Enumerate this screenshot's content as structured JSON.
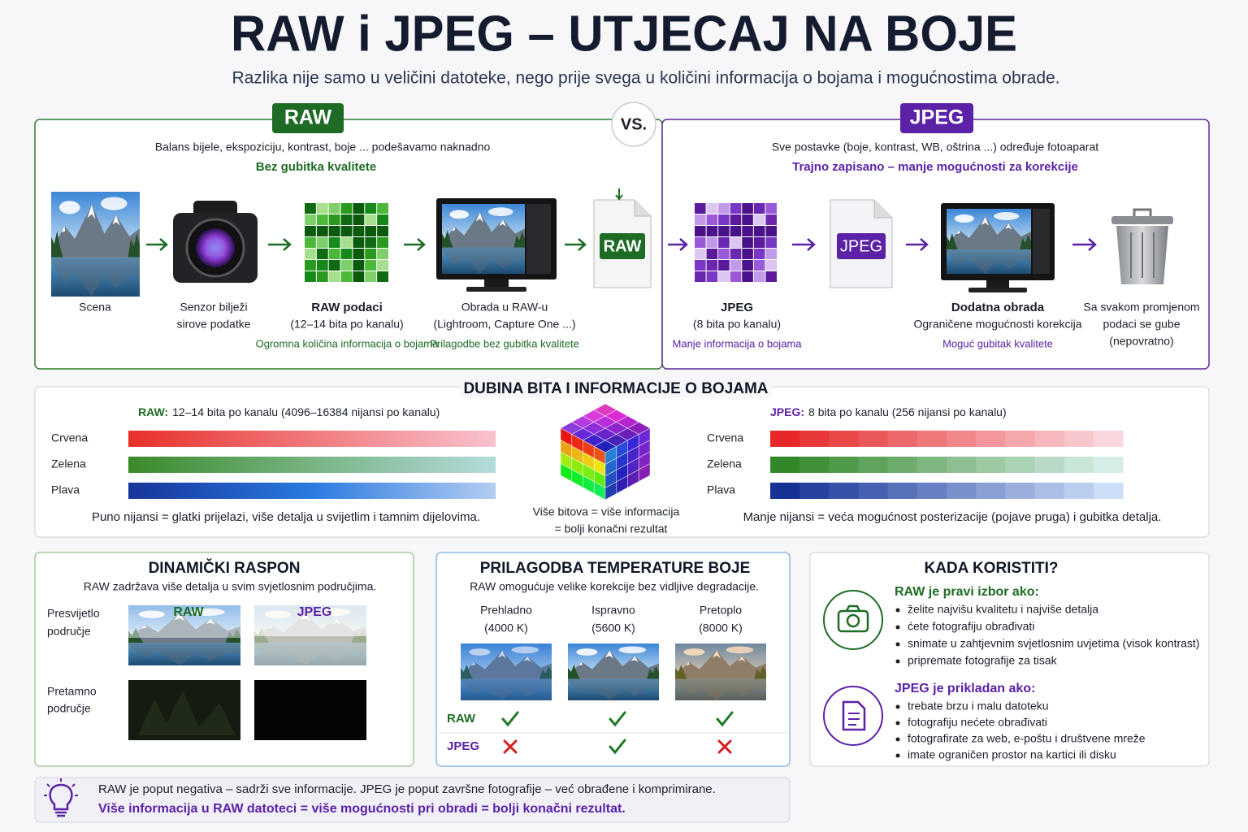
{
  "header": {
    "title": "RAW i JPEG – UTJECAJ NA BOJE",
    "subtitle": "Razlika nije samo u veličini datoteke, nego prije svega u količini informacija o bojama i mogućnostima obrade."
  },
  "raw_panel": {
    "badge": "RAW",
    "intro": "Balans bijele, ekspoziciju, kontrast, boje ... podešavamo naknadno",
    "highlight": "Bez gubitka kvalitete",
    "file_label": "RAW",
    "steps": [
      {
        "lines": [
          "Scena"
        ]
      },
      {
        "lines": [
          "Senzor bilježi",
          "sirove podatke"
        ]
      },
      {
        "lines": [
          "RAW podaci",
          "(12–14 bita po kanalu)"
        ],
        "note": "Ogromna količina informacija o bojama"
      },
      {
        "lines": [
          "Obrada u RAW-u",
          "(Lightroom, Capture One ...)"
        ],
        "note": "Prilagodbe bez gubitka kvalitete"
      }
    ]
  },
  "vs": "VS.",
  "jpeg_panel": {
    "badge": "JPEG",
    "intro": "Sve postavke (boje, kontrast, WB, oštrina ...) određuje fotoaparat",
    "highlight": "Trajno zapisano – manje mogućnosti za korekcije",
    "file_label": "JPEG",
    "steps": [
      {
        "lines": [
          "JPEG",
          "(8 bita po kanalu)"
        ],
        "note": "Manje informacija o bojama"
      },
      {
        "lines": [
          "Dodatna obrada",
          "Ograničene mogućnosti korekcija"
        ],
        "note": "Moguć gubitak kvalitete"
      },
      {
        "lines": [
          "Sa svakom promjenom",
          "podaci se gube",
          "(nepovratno)"
        ]
      }
    ]
  },
  "bit_depth": {
    "title": "DUBINA BITA I INFORMACIJE O BOJAMA",
    "raw": {
      "label": "RAW:",
      "text": "12–14 bita po kanalu (4096–16384 nijansi po kanalu)",
      "channels": [
        "Crvena",
        "Zelena",
        "Plava"
      ],
      "note": "Puno nijansi = glatki prijelazi, više detalja u svijetlim i tamnim dijelovima."
    },
    "center_note": [
      "Više bitova = više informacija",
      "= bolji konačni rezultat"
    ],
    "jpeg": {
      "label": "JPEG:",
      "text": "8 bita po kanalu (256 nijansi po kanalu)",
      "channels": [
        "Crvena",
        "Zelena",
        "Plava"
      ],
      "note": "Manje nijansi = veća mogućnost posterizacije (pojave pruga) i gubitka detalja."
    }
  },
  "dynamic_range": {
    "title": "DINAMIČKI RASPON",
    "subtitle": "RAW zadržava više detalja u svim svjetlosnim područjima.",
    "rows": [
      {
        "lines": [
          "Presvijetlo",
          "područje"
        ]
      },
      {
        "lines": [
          "Pretamno",
          "područje"
        ]
      }
    ],
    "image_labels": [
      "RAW",
      "JPEG"
    ]
  },
  "temperature": {
    "title": "PRILAGODBA TEMPERATURE BOJE",
    "subtitle": "RAW omogućuje velike korekcije bez vidljive degradacije.",
    "columns": [
      {
        "name": "Prehladno",
        "kelvin": "(4000 K)"
      },
      {
        "name": "Ispravno",
        "kelvin": "(5600 K)"
      },
      {
        "name": "Pretoplo",
        "kelvin": "(8000 K)"
      }
    ],
    "rows": [
      {
        "label": "RAW",
        "values": [
          true,
          true,
          true
        ]
      },
      {
        "label": "JPEG",
        "values": [
          false,
          true,
          false
        ]
      }
    ]
  },
  "when_to_use": {
    "title": "KADA KORISTITI?",
    "raw": {
      "heading": "RAW je pravi izbor ako:",
      "items": [
        "želite najvišu kvalitetu i najviše detalja",
        "ćete fotografiju obrađivati",
        "snimate u zahtjevnim svjetlosnim uvjetima (visok kontrast)",
        "pripremate fotografije za tisak"
      ]
    },
    "jpeg": {
      "heading": "JPEG je prikladan ako:",
      "items": [
        "trebate brzu i malu datoteku",
        "fotografiju nećete obrađivati",
        "fotografirate za web, e-poštu i društvene mreže",
        "imate ograničen prostor na kartici ili disku"
      ]
    }
  },
  "footer": {
    "line1": "RAW je poput negativa – sadrži sve informacije. JPEG je poput završne fotografije – već obrađene i komprimirane.",
    "line2": "Više informacija u RAW datoteci = više mogućnosti pri obradi = bolji konačni rezultat."
  }
}
